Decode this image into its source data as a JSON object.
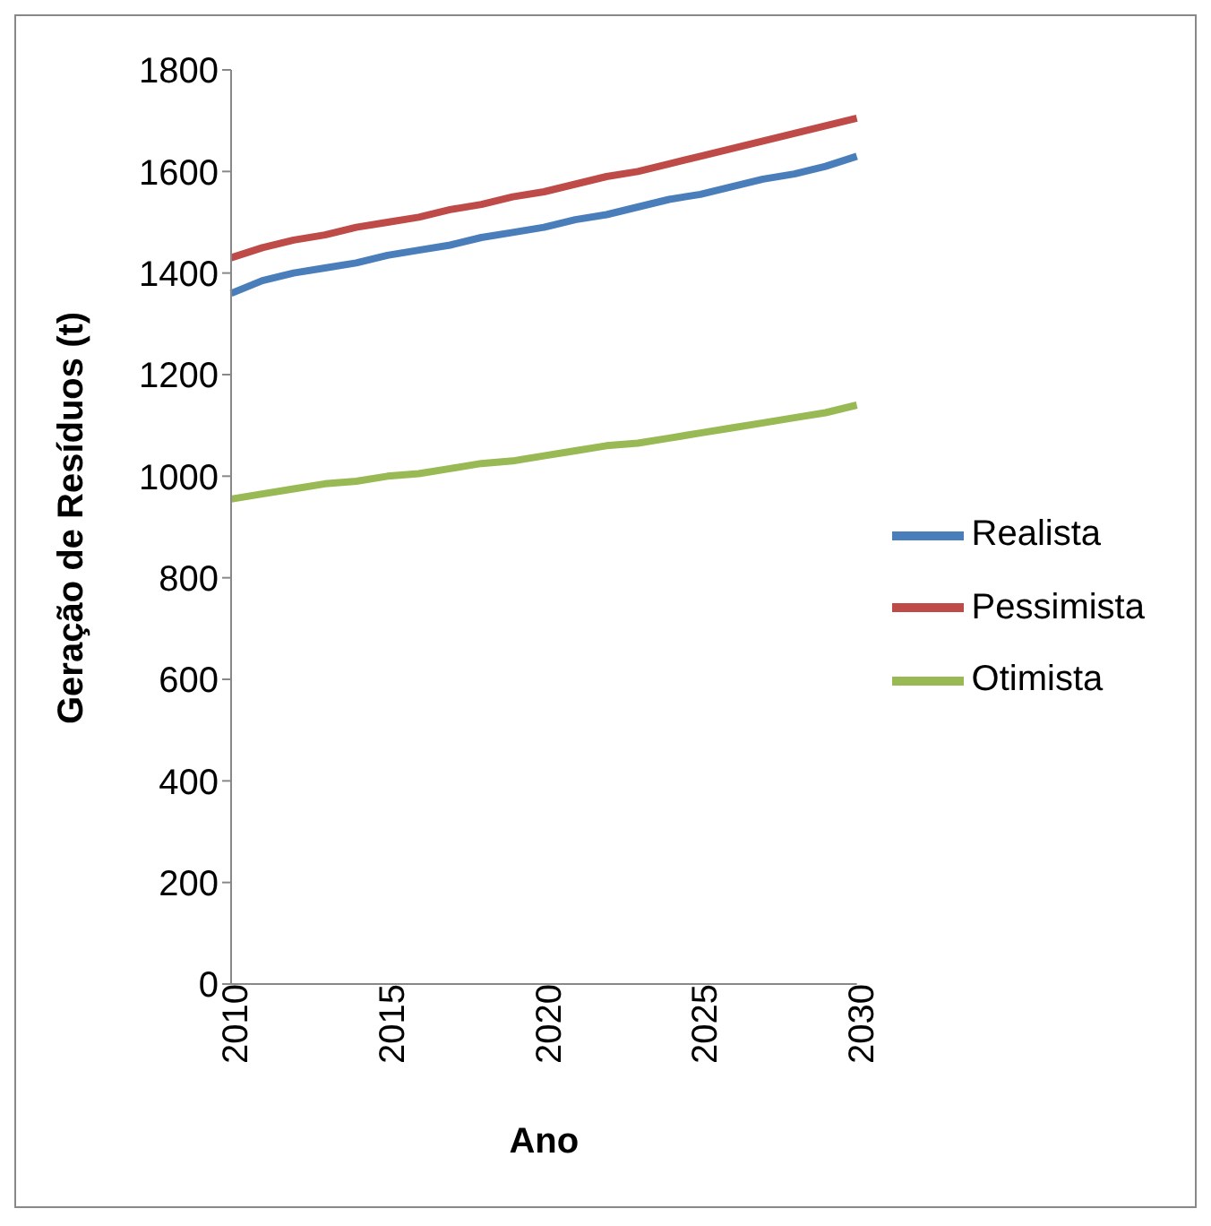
{
  "chart_data": {
    "type": "line",
    "xlabel": "Ano",
    "ylabel": "Geração de Resíduos (t)",
    "x": [
      2010,
      2011,
      2012,
      2013,
      2014,
      2015,
      2016,
      2017,
      2018,
      2019,
      2020,
      2021,
      2022,
      2023,
      2024,
      2025,
      2026,
      2027,
      2028,
      2029,
      2030
    ],
    "series": [
      {
        "name": "Realista",
        "color": "#4a7ebb",
        "values": [
          1360,
          1385,
          1400,
          1410,
          1420,
          1435,
          1445,
          1455,
          1470,
          1480,
          1490,
          1505,
          1515,
          1530,
          1545,
          1555,
          1570,
          1585,
          1595,
          1610,
          1630
        ]
      },
      {
        "name": "Pessimista",
        "color": "#be4b48",
        "values": [
          1430,
          1450,
          1465,
          1475,
          1490,
          1500,
          1510,
          1525,
          1535,
          1550,
          1560,
          1575,
          1590,
          1600,
          1615,
          1630,
          1645,
          1660,
          1675,
          1690,
          1705
        ]
      },
      {
        "name": "Otimista",
        "color": "#98b954",
        "values": [
          955,
          965,
          975,
          985,
          990,
          1000,
          1005,
          1015,
          1025,
          1030,
          1040,
          1050,
          1060,
          1065,
          1075,
          1085,
          1095,
          1105,
          1115,
          1125,
          1140
        ]
      }
    ],
    "xlim": [
      2010,
      2030
    ],
    "xticks": [
      2010,
      2015,
      2020,
      2025,
      2030
    ],
    "ylim": [
      0,
      1800
    ],
    "yticks": [
      0,
      200,
      400,
      600,
      800,
      1000,
      1200,
      1400,
      1600,
      1800
    ],
    "grid": false,
    "legend": "right",
    "marker": "none",
    "line_style": "solid"
  }
}
